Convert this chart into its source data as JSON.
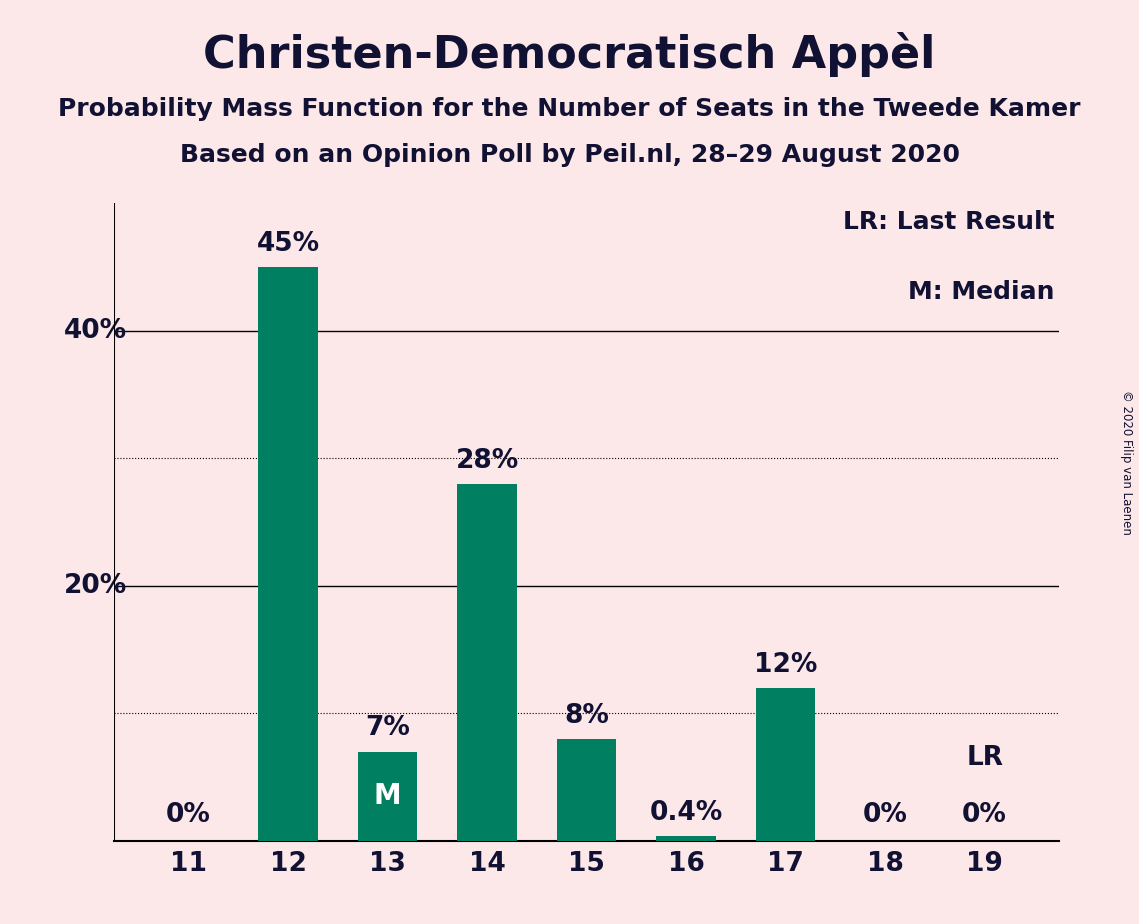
{
  "title": "Christen-Democratisch Appèl",
  "subtitle1": "Probability Mass Function for the Number of Seats in the Tweede Kamer",
  "subtitle2": "Based on an Opinion Poll by Peil.nl, 28–29 August 2020",
  "copyright": "© 2020 Filip van Laenen",
  "categories": [
    11,
    12,
    13,
    14,
    15,
    16,
    17,
    18,
    19
  ],
  "values": [
    0,
    45,
    7,
    28,
    8,
    0.4,
    12,
    0,
    0
  ],
  "labels": [
    "0%",
    "45%",
    "7%",
    "28%",
    "8%",
    "0.4%",
    "12%",
    "0%",
    "0%"
  ],
  "bar_color": "#008060",
  "background_color": "#fce8e8",
  "text_color": "#111133",
  "median_seat": 13,
  "lr_seat": 19,
  "legend_lr": "LR: Last Result",
  "legend_m": "M: Median",
  "dotted_gridlines": [
    10,
    30
  ],
  "solid_gridlines": [
    20,
    40
  ],
  "ylim": [
    0,
    50
  ],
  "title_fontsize": 32,
  "subtitle_fontsize": 18,
  "label_fontsize": 19,
  "tick_fontsize": 19,
  "legend_fontsize": 18,
  "ytick_labels_positions": [
    20,
    40
  ],
  "ytick_labels_text": [
    "20%",
    "40%"
  ]
}
